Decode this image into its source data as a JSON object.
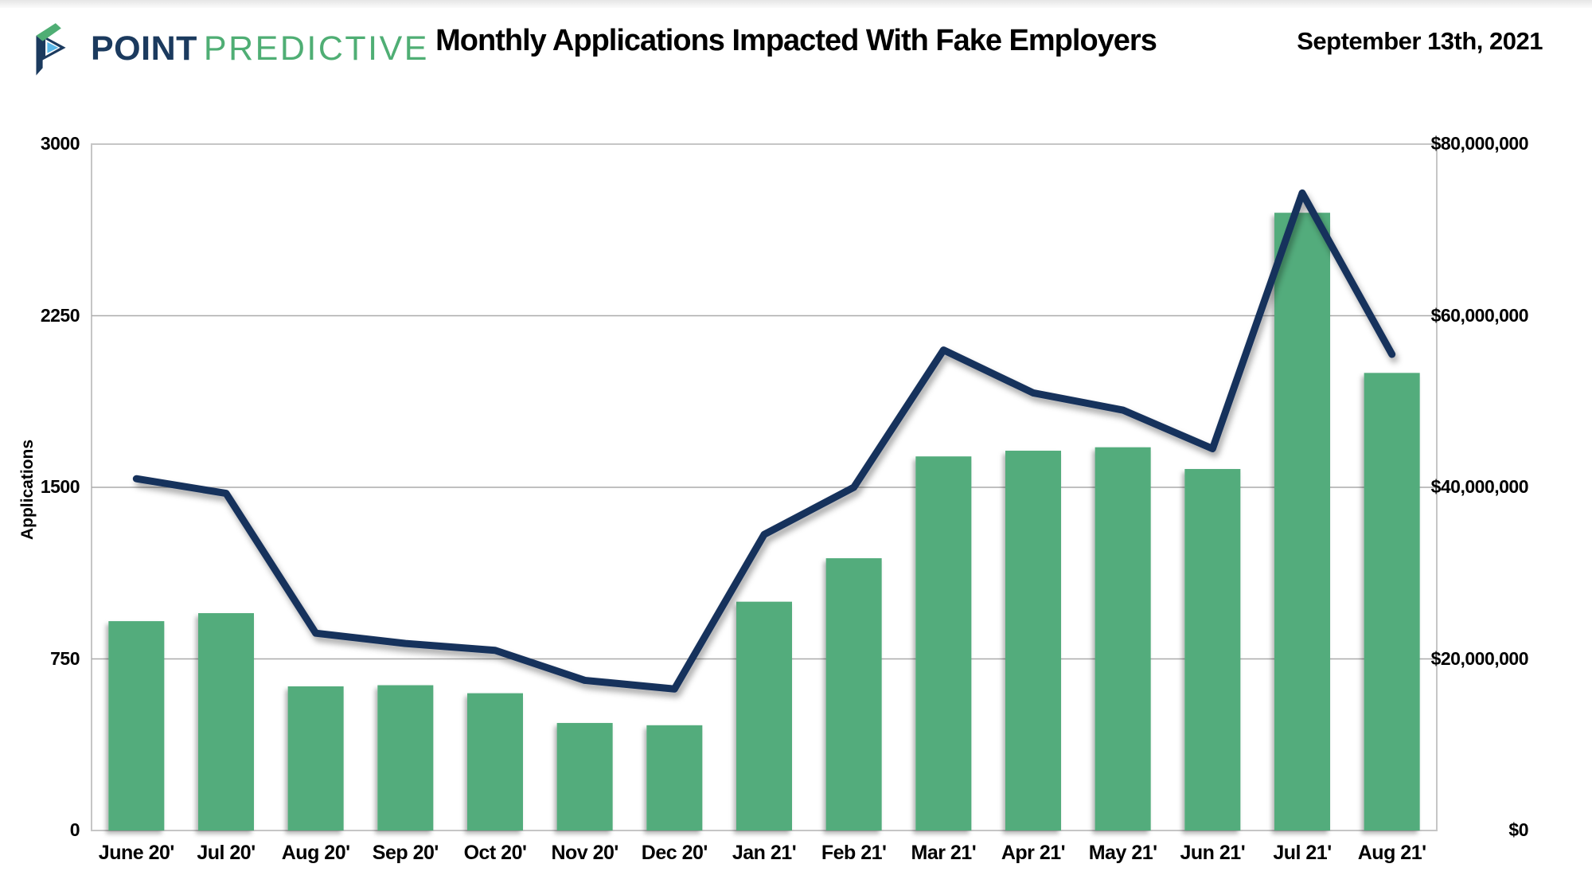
{
  "header": {
    "logo": {
      "primary": "POINT",
      "secondary": "PREDICTIVE"
    },
    "title": "Monthly Applications Impacted With Fake Employers",
    "date": "September 13th, 2021"
  },
  "chart_data": {
    "type": "bar",
    "subtype": "bar-with-line-overlay",
    "title": "Monthly Applications Impacted With Fake Employers",
    "categories": [
      "June 20'",
      "Jul 20'",
      "Aug 20'",
      "Sep 20'",
      "Oct 20'",
      "Nov 20'",
      "Dec 20'",
      "Jan 21'",
      "Feb 21'",
      "Mar 21'",
      "Apr 21'",
      "May 21'",
      "Jun 21'",
      "Jul 21'",
      "Aug 21'"
    ],
    "series": [
      {
        "type": "bar",
        "axis": "left",
        "values": [
          915,
          950,
          630,
          635,
          600,
          470,
          460,
          1000,
          1190,
          1635,
          1660,
          1675,
          1580,
          2700,
          2000
        ]
      },
      {
        "type": "line",
        "axis": "right",
        "values": [
          41000000,
          39300000,
          23000000,
          21800000,
          21000000,
          17500000,
          16500000,
          34500000,
          40000000,
          56000000,
          51000000,
          49000000,
          44500000,
          74300000,
          55500000
        ]
      }
    ],
    "left_axis": {
      "label": "Applications",
      "min": 0,
      "max": 3000,
      "ticks": [
        0,
        750,
        1500,
        2250,
        3000
      ],
      "tick_labels": [
        "0",
        "750",
        "1500",
        "2250",
        "3000"
      ]
    },
    "right_axis": {
      "min": 0,
      "max": 80000000,
      "ticks": [
        0,
        20000000,
        40000000,
        60000000,
        80000000
      ],
      "tick_labels": [
        "$0",
        "$20,000,000",
        "$40,000,000",
        "$60,000,000",
        "$80,000,000"
      ]
    },
    "grid": true,
    "legend": "none",
    "colors": {
      "bar": "#52ac7c",
      "line": "#17305c",
      "gridline": "#ababab",
      "plot_border": "#c6c6c6"
    }
  }
}
